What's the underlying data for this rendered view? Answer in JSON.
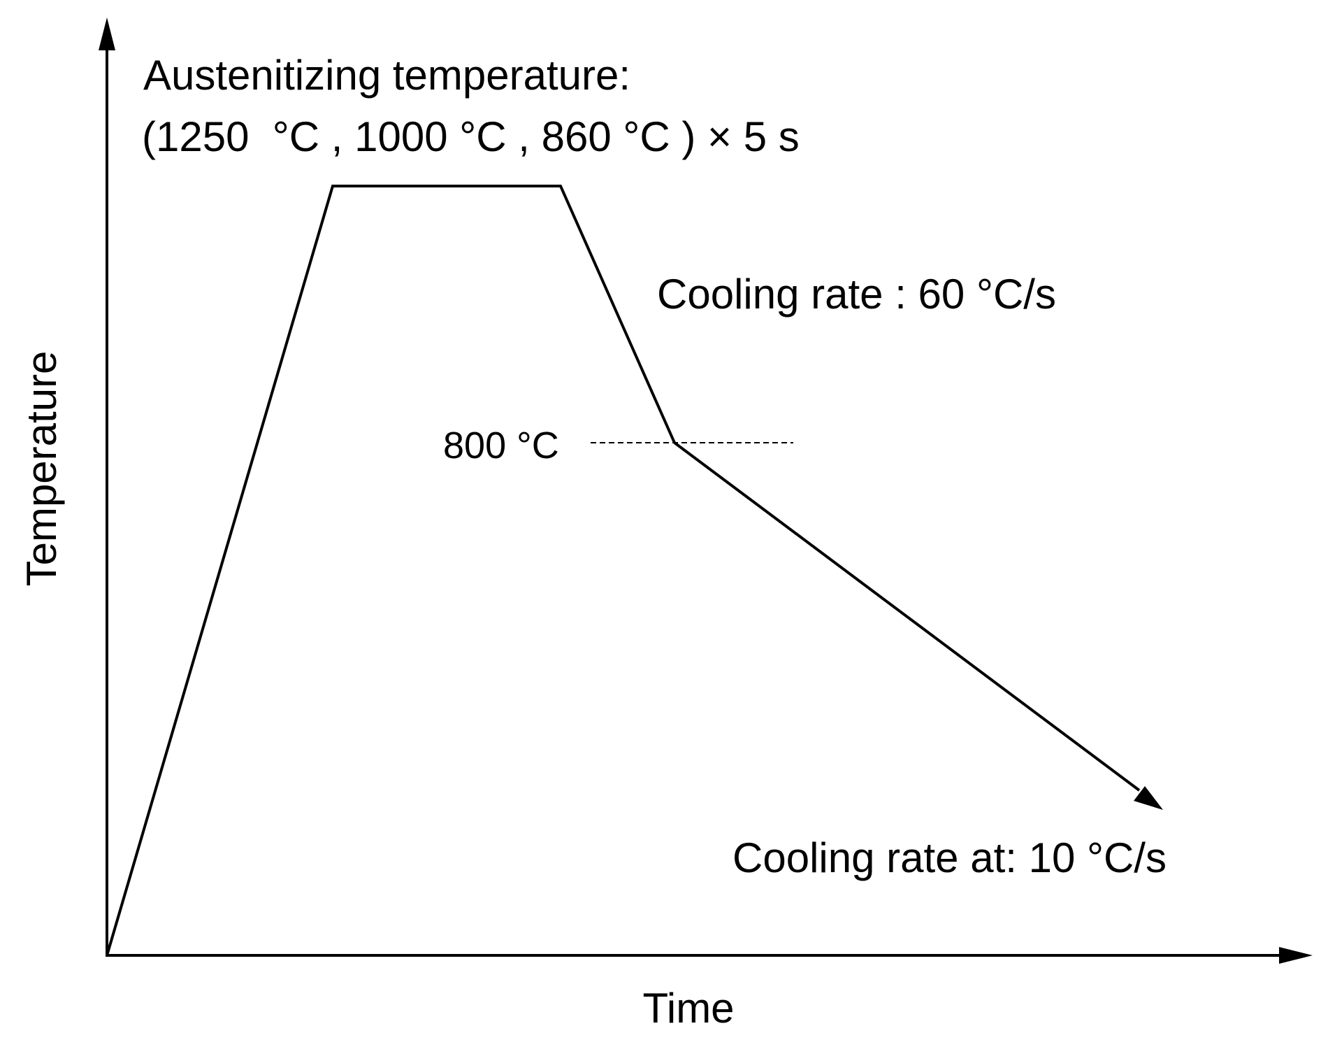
{
  "axes": {
    "x_label": "Time",
    "y_label": "Temperature"
  },
  "annotations": {
    "austenitizing_title": "Austenitizing temperature:",
    "austenitizing_detail": "(1250  °C , 1000 °C , 860 °C ) × 5 s",
    "cooling_rate_1": "Cooling rate : 60 °C/s",
    "transition_temp": "800 °C",
    "cooling_rate_2": "Cooling rate at: 10 °C/s"
  },
  "colors": {
    "line": "#000000",
    "background": "#ffffff"
  }
}
